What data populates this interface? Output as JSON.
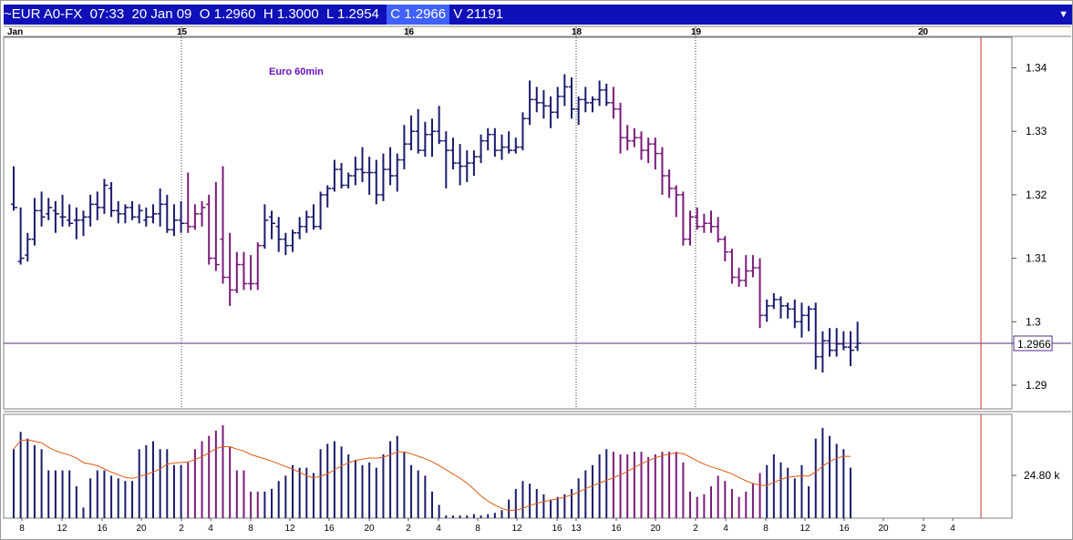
{
  "header": {
    "symbol": "~EUR A0-FX",
    "time": "07:33",
    "date": "20 Jan 09",
    "open": "O 1.2960",
    "high": "H 1.3000",
    "low": "L 1.2954",
    "close": "C 1.2966",
    "volume": "V 21191",
    "menu_icon": "triangle-down-icon"
  },
  "colors": {
    "title_bar": "#1010b8",
    "up_bar": "#1a1a6e",
    "down_bar": "#7a1a7a",
    "ma_line": "#e05a10",
    "price_line": "#5a2a8a",
    "cursor_line": "#cc3333"
  },
  "chart_data": [
    {
      "type": "ohlc",
      "title": "Euro 60min",
      "top_axis": {
        "labels": [
          "Jan",
          "15",
          "16",
          "18",
          "19",
          "20"
        ]
      },
      "ylim": [
        1.285,
        1.345
      ],
      "yticks": [
        "1.34",
        "1.33",
        "1.32",
        "1.31",
        "1.3",
        "1.29"
      ],
      "last_price": "1.2966",
      "bars": [
        [
          1.3185,
          1.3245,
          1.3175,
          1.318
        ],
        [
          1.3095,
          1.318,
          1.309,
          1.31
        ],
        [
          1.3105,
          1.314,
          1.3095,
          1.313
        ],
        [
          1.313,
          1.3195,
          1.312,
          1.3175
        ],
        [
          1.3175,
          1.3205,
          1.315,
          1.3165
        ],
        [
          1.317,
          1.3195,
          1.316,
          1.318
        ],
        [
          1.3175,
          1.319,
          1.314,
          1.317
        ],
        [
          1.3165,
          1.32,
          1.315,
          1.3165
        ],
        [
          1.316,
          1.3185,
          1.315,
          1.3155
        ],
        [
          1.316,
          1.318,
          1.313,
          1.316
        ],
        [
          1.316,
          1.3175,
          1.3135,
          1.3165
        ],
        [
          1.3165,
          1.32,
          1.315,
          1.3185
        ],
        [
          1.3185,
          1.3205,
          1.316,
          1.318
        ],
        [
          1.318,
          1.3225,
          1.317,
          1.3215
        ],
        [
          1.321,
          1.322,
          1.3165,
          1.3175
        ],
        [
          1.3175,
          1.319,
          1.3155,
          1.317
        ],
        [
          1.317,
          1.3185,
          1.3155,
          1.318
        ],
        [
          1.318,
          1.319,
          1.316,
          1.3165
        ],
        [
          1.3165,
          1.3185,
          1.3155,
          1.3175
        ],
        [
          1.316,
          1.318,
          1.315,
          1.3165
        ],
        [
          1.3165,
          1.3185,
          1.3155,
          1.317
        ],
        [
          1.317,
          1.321,
          1.315,
          1.3185
        ],
        [
          1.3185,
          1.32,
          1.314,
          1.3145
        ],
        [
          1.3145,
          1.3185,
          1.3135,
          1.316
        ],
        [
          1.316,
          1.319,
          1.314,
          1.3155
        ],
        [
          1.3155,
          1.3235,
          1.314,
          1.315
        ],
        [
          1.315,
          1.3185,
          1.3145,
          1.317
        ],
        [
          1.317,
          1.319,
          1.315,
          1.318
        ],
        [
          1.3185,
          1.32,
          1.309,
          1.31
        ],
        [
          1.31,
          1.322,
          1.308,
          1.309
        ],
        [
          1.313,
          1.3245,
          1.306,
          1.307
        ],
        [
          1.307,
          1.314,
          1.3025,
          1.305
        ],
        [
          1.305,
          1.311,
          1.3045,
          1.309
        ],
        [
          1.309,
          1.311,
          1.305,
          1.306
        ],
        [
          1.306,
          1.3105,
          1.305,
          1.306
        ],
        [
          1.306,
          1.3125,
          1.305,
          1.312
        ],
        [
          1.312,
          1.3185,
          1.3115,
          1.316
        ],
        [
          1.3165,
          1.3175,
          1.313,
          1.3155
        ],
        [
          1.315,
          1.3165,
          1.311,
          1.313
        ],
        [
          1.313,
          1.314,
          1.3105,
          1.312
        ],
        [
          1.312,
          1.3145,
          1.311,
          1.314
        ],
        [
          1.314,
          1.3165,
          1.313,
          1.315
        ],
        [
          1.315,
          1.3175,
          1.314,
          1.3165
        ],
        [
          1.3165,
          1.3185,
          1.3145,
          1.315
        ],
        [
          1.315,
          1.3205,
          1.3145,
          1.32
        ],
        [
          1.32,
          1.3215,
          1.318,
          1.321
        ],
        [
          1.321,
          1.3255,
          1.3205,
          1.324
        ],
        [
          1.324,
          1.325,
          1.321,
          1.3215
        ],
        [
          1.3215,
          1.3235,
          1.321,
          1.323
        ],
        [
          1.323,
          1.326,
          1.3215,
          1.324
        ],
        [
          1.324,
          1.3275,
          1.322,
          1.3235
        ],
        [
          1.3235,
          1.326,
          1.32,
          1.3235
        ],
        [
          1.3235,
          1.3255,
          1.3185,
          1.32
        ],
        [
          1.32,
          1.3265,
          1.319,
          1.324
        ],
        [
          1.324,
          1.3275,
          1.3215,
          1.323
        ],
        [
          1.323,
          1.3265,
          1.3205,
          1.3255
        ],
        [
          1.3255,
          1.331,
          1.324,
          1.328
        ],
        [
          1.328,
          1.3325,
          1.327,
          1.33
        ],
        [
          1.33,
          1.3335,
          1.3265,
          1.327
        ],
        [
          1.327,
          1.3315,
          1.326,
          1.3295
        ],
        [
          1.3295,
          1.332,
          1.326,
          1.33
        ],
        [
          1.33,
          1.334,
          1.328,
          1.3285
        ],
        [
          1.3285,
          1.33,
          1.321,
          1.327
        ],
        [
          1.327,
          1.329,
          1.324,
          1.325
        ],
        [
          1.325,
          1.328,
          1.3215,
          1.3245
        ],
        [
          1.3245,
          1.327,
          1.322,
          1.325
        ],
        [
          1.325,
          1.327,
          1.323,
          1.326
        ],
        [
          1.326,
          1.3295,
          1.325,
          1.3285
        ],
        [
          1.3285,
          1.3305,
          1.327,
          1.3295
        ],
        [
          1.3295,
          1.3305,
          1.326,
          1.327
        ],
        [
          1.327,
          1.3295,
          1.3255,
          1.3275
        ],
        [
          1.3275,
          1.33,
          1.3265,
          1.327
        ],
        [
          1.327,
          1.329,
          1.3265,
          1.3275
        ],
        [
          1.3275,
          1.333,
          1.327,
          1.332
        ],
        [
          1.332,
          1.338,
          1.331,
          1.335
        ],
        [
          1.335,
          1.337,
          1.333,
          1.3345
        ],
        [
          1.3345,
          1.3365,
          1.332,
          1.334
        ],
        [
          1.334,
          1.3355,
          1.3305,
          1.333
        ],
        [
          1.333,
          1.337,
          1.332,
          1.3355
        ],
        [
          1.3355,
          1.339,
          1.334,
          1.337
        ],
        [
          1.337,
          1.3385,
          1.332,
          1.3335
        ],
        [
          1.3335,
          1.3355,
          1.331,
          1.335
        ],
        [
          1.335,
          1.337,
          1.333,
          1.3345
        ],
        [
          1.3345,
          1.3355,
          1.333,
          1.335
        ],
        [
          1.335,
          1.338,
          1.334,
          1.3365
        ],
        [
          1.3365,
          1.3375,
          1.334,
          1.3345
        ],
        [
          1.3345,
          1.337,
          1.332,
          1.3335
        ],
        [
          1.3335,
          1.3345,
          1.3265,
          1.329
        ],
        [
          1.329,
          1.331,
          1.327,
          1.3285
        ],
        [
          1.3285,
          1.3305,
          1.3275,
          1.329
        ],
        [
          1.329,
          1.33,
          1.3255,
          1.327
        ],
        [
          1.327,
          1.329,
          1.325,
          1.328
        ],
        [
          1.328,
          1.329,
          1.324,
          1.3265
        ],
        [
          1.3265,
          1.3275,
          1.32,
          1.323
        ],
        [
          1.323,
          1.324,
          1.3195,
          1.321
        ],
        [
          1.321,
          1.3215,
          1.3165,
          1.32
        ],
        [
          1.32,
          1.3205,
          1.312,
          1.313
        ],
        [
          1.313,
          1.3175,
          1.312,
          1.3165
        ],
        [
          1.3165,
          1.318,
          1.3145,
          1.315
        ],
        [
          1.315,
          1.317,
          1.314,
          1.3155
        ],
        [
          1.3155,
          1.3175,
          1.314,
          1.315
        ],
        [
          1.315,
          1.3165,
          1.3125,
          1.313
        ],
        [
          1.313,
          1.3135,
          1.3095,
          1.311
        ],
        [
          1.311,
          1.3115,
          1.306,
          1.307
        ],
        [
          1.307,
          1.3085,
          1.3055,
          1.3065
        ],
        [
          1.3065,
          1.3105,
          1.3055,
          1.308
        ],
        [
          1.308,
          1.3105,
          1.307,
          1.3085
        ],
        [
          1.3085,
          1.31,
          1.299,
          1.301
        ],
        [
          1.301,
          1.3035,
          1.3,
          1.3025
        ],
        [
          1.3025,
          1.3045,
          1.302,
          1.3035
        ],
        [
          1.3035,
          1.304,
          1.3005,
          1.3025
        ],
        [
          1.3025,
          1.303,
          1.3005,
          1.302
        ],
        [
          1.302,
          1.3035,
          1.299,
          1.3
        ],
        [
          1.3,
          1.303,
          1.2975,
          1.301
        ],
        [
          1.301,
          1.3025,
          1.2985,
          1.302
        ],
        [
          1.302,
          1.303,
          1.2925,
          1.2945
        ],
        [
          1.2945,
          1.2985,
          1.292,
          1.297
        ],
        [
          1.297,
          1.299,
          1.2945,
          1.2955
        ],
        [
          1.2955,
          1.299,
          1.2945,
          1.2965
        ],
        [
          1.2965,
          1.2985,
          1.2955,
          1.296
        ],
        [
          1.296,
          1.2985,
          1.293,
          1.2955
        ],
        [
          1.296,
          1.3,
          1.2954,
          1.2966
        ]
      ]
    },
    {
      "type": "volume",
      "ytick": "24.80 k",
      "x_labels": [
        "8",
        "12",
        "16",
        "20",
        "2",
        "4",
        "8",
        "12",
        "16",
        "20",
        "2",
        "4",
        "8",
        "12",
        "16",
        "13",
        "16",
        "20",
        "2",
        "4",
        "8",
        "12",
        "16",
        "20",
        "2",
        "4"
      ],
      "values": [
        52,
        65,
        60,
        55,
        52,
        36,
        36,
        36,
        36,
        24,
        8,
        30,
        36,
        36,
        32,
        30,
        28,
        28,
        52,
        55,
        58,
        52,
        52,
        40,
        40,
        42,
        52,
        58,
        62,
        66,
        70,
        54,
        36,
        36,
        20,
        20,
        20,
        22,
        28,
        32,
        40,
        38,
        38,
        34,
        52,
        56,
        58,
        54,
        48,
        44,
        40,
        42,
        38,
        48,
        58,
        62,
        50,
        40,
        36,
        32,
        20,
        10,
        2,
        2,
        2,
        2,
        3,
        2,
        3,
        4,
        6,
        14,
        22,
        28,
        26,
        22,
        18,
        14,
        16,
        18,
        22,
        30,
        36,
        40,
        48,
        52,
        50,
        48,
        48,
        50,
        50,
        46,
        48,
        50,
        50,
        50,
        42,
        20,
        16,
        18,
        24,
        32,
        28,
        22,
        16,
        20,
        26,
        34,
        40,
        48,
        42,
        38,
        30,
        40,
        24,
        60,
        68,
        62,
        56,
        52,
        38
      ]
    }
  ]
}
